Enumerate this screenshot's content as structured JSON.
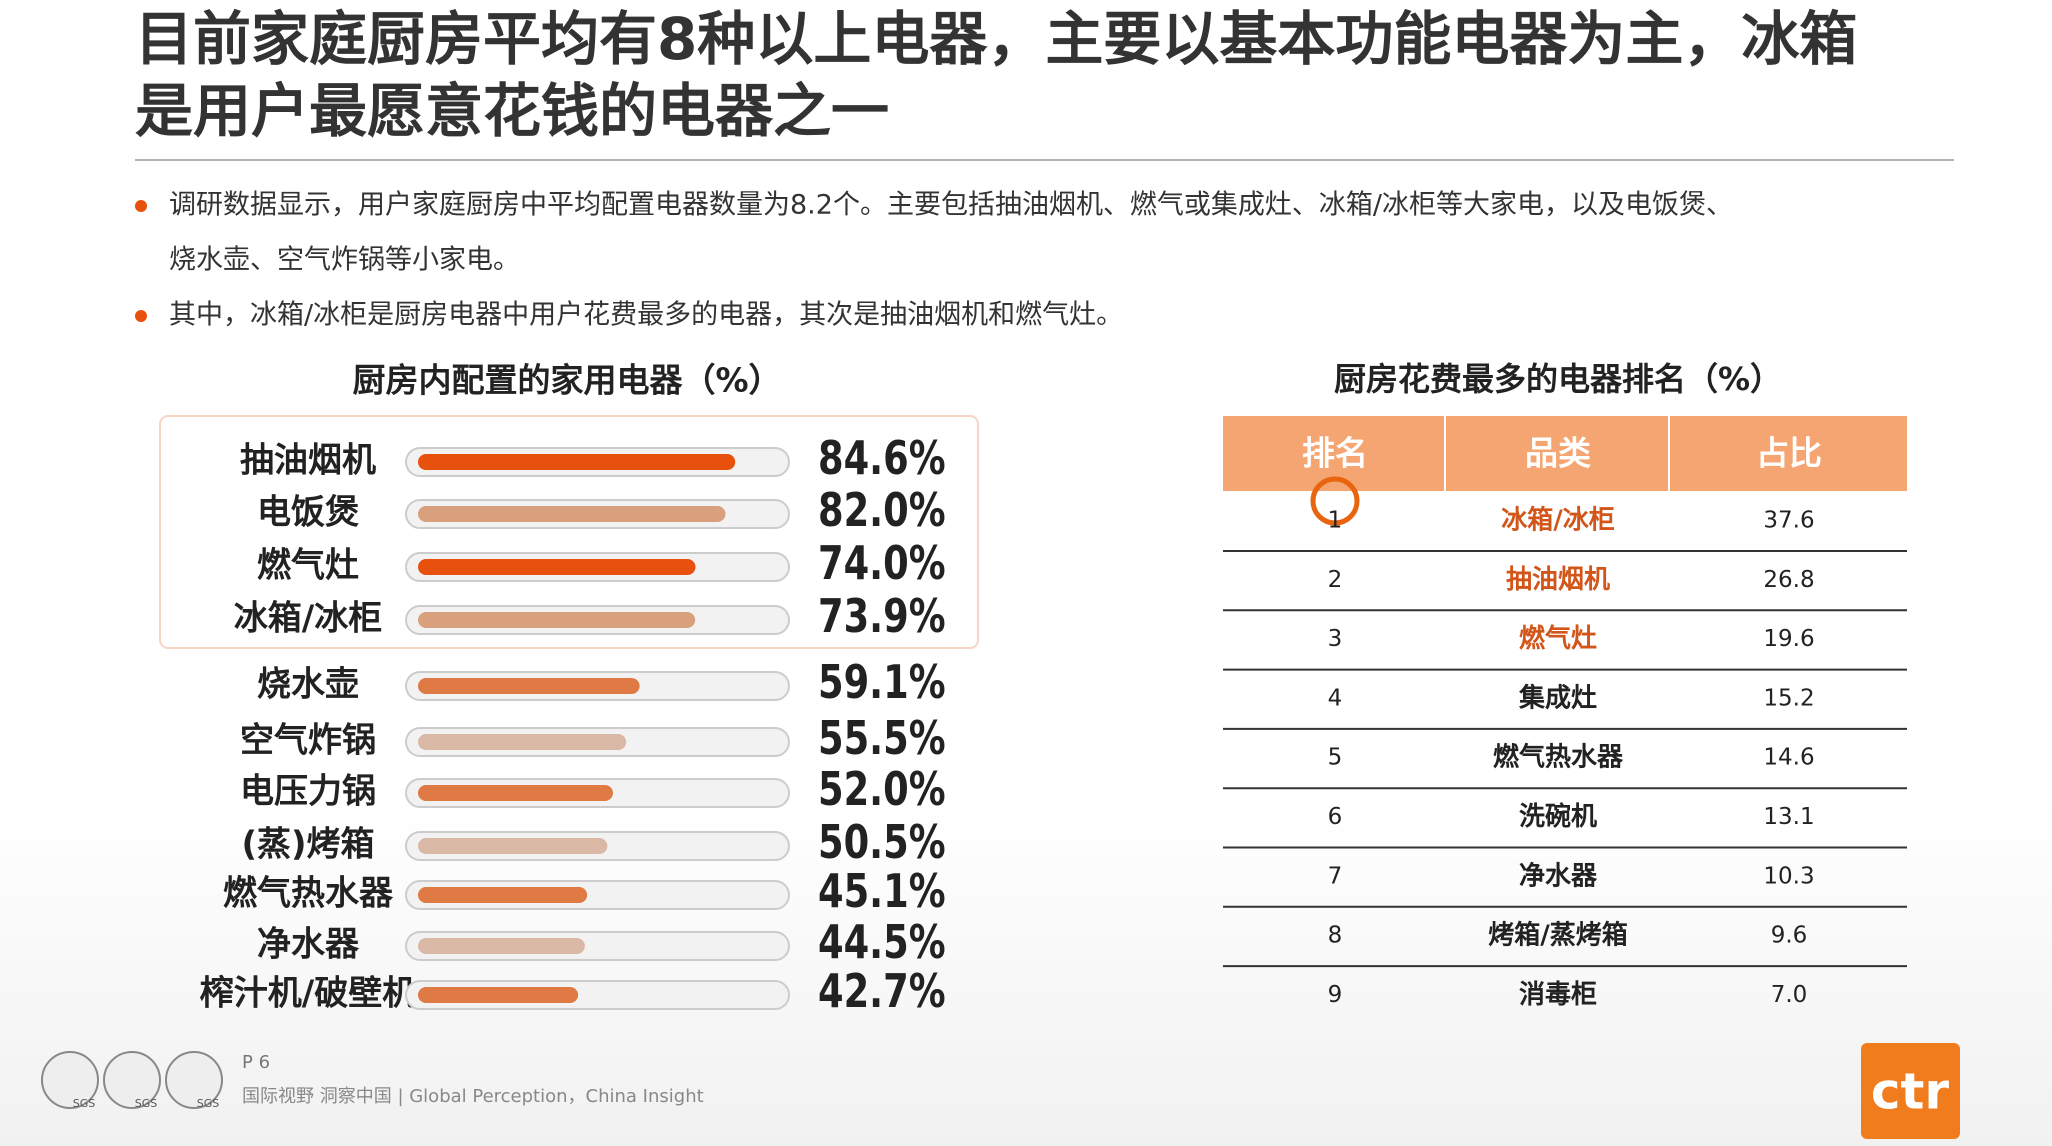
{
  "header": {
    "title_lines": [
      "目前家庭厨房平均有8种以上电器，主要以基本功能电器为主，冰箱",
      "是用户最愿意花钱的电器之一"
    ]
  },
  "bullets": [
    [
      "调研数据显示，用户家庭厨房中平均配置电器数量为8.2个。主要包括抽油烟机、燃气或集成灶、冰箱/冰柜等大家电，以及电饭煲、",
      "烧水壶、空气炸锅等小家电。"
    ],
    [
      "其中，冰箱/冰柜是厨房电器中用户花费最多的电器，其次是抽油烟机和燃气灶。"
    ]
  ],
  "chart_data": {
    "type": "bar",
    "orientation": "horizontal",
    "title": "厨房内配置的家用电器（%）",
    "categories": [
      "抽油烟机",
      "电饭煲",
      "燃气灶",
      "冰箱/冰柜",
      "烧水壶",
      "空气炸锅",
      "电压力锅",
      "(蒸)烤箱",
      "燃气热水器",
      "净水器",
      "榨汁机/破壁机"
    ],
    "values": [
      84.6,
      82.0,
      74.0,
      73.9,
      59.1,
      55.5,
      52.0,
      50.5,
      45.1,
      44.5,
      42.7
    ],
    "value_labels": [
      "84.6%",
      "82.0%",
      "74.0%",
      "73.9%",
      "59.1%",
      "55.5%",
      "52.0%",
      "50.5%",
      "45.1%",
      "44.5%",
      "42.7%"
    ],
    "colors": [
      "#e8500e",
      "#d9a07e",
      "#e8500e",
      "#d9a07e",
      "#e07a45",
      "#d9b8a5",
      "#e07a45",
      "#d9b8a5",
      "#e07a45",
      "#d9b8a5",
      "#e07a45"
    ],
    "xlim": [
      0,
      100
    ]
  },
  "table": {
    "title": "厨房花费最多的电器排名（%）",
    "header": [
      "排名",
      "品类",
      "占比"
    ],
    "rows": [
      [
        "1",
        "冰箱/冰柜",
        "37.6"
      ],
      [
        "2",
        "抽油烟机",
        "26.8"
      ],
      [
        "3",
        "燃气灶",
        "19.6"
      ],
      [
        "4",
        "集成灶",
        "15.2"
      ],
      [
        "5",
        "燃气热水器",
        "14.6"
      ],
      [
        "6",
        "洗碗机",
        "13.1"
      ],
      [
        "7",
        "净水器",
        "10.3"
      ],
      [
        "8",
        "烤箱/蒸烤箱",
        "9.6"
      ],
      [
        "9",
        "消毒柜",
        "7.0"
      ]
    ]
  },
  "footer": {
    "page": "P 6",
    "tagline": "国际视野  洞察中国 |  Global Perception，China Insight",
    "logo": "ctr",
    "badges": [
      "SGS",
      "SGS",
      "SGS"
    ]
  }
}
